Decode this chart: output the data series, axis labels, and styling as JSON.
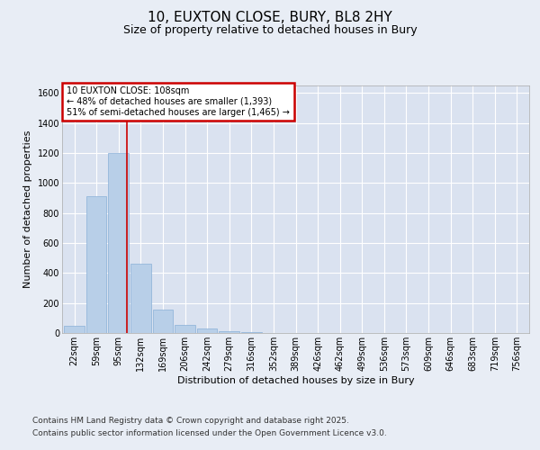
{
  "title_line1": "10, EUXTON CLOSE, BURY, BL8 2HY",
  "title_line2": "Size of property relative to detached houses in Bury",
  "xlabel": "Distribution of detached houses by size in Bury",
  "ylabel": "Number of detached properties",
  "bar_color": "#b8cfe8",
  "bar_edge_color": "#8ab0d8",
  "background_color": "#e8edf5",
  "plot_bg_color": "#dae2f0",
  "annotation_text": "10 EUXTON CLOSE: 108sqm\n← 48% of detached houses are smaller (1,393)\n51% of semi-detached houses are larger (1,465) →",
  "annotation_box_color": "#ffffff",
  "annotation_edge_color": "#cc0000",
  "vline_color": "#cc0000",
  "vline_x_index": 2,
  "categories": [
    "22sqm",
    "59sqm",
    "95sqm",
    "132sqm",
    "169sqm",
    "206sqm",
    "242sqm",
    "279sqm",
    "316sqm",
    "352sqm",
    "389sqm",
    "426sqm",
    "462sqm",
    "499sqm",
    "536sqm",
    "573sqm",
    "609sqm",
    "646sqm",
    "683sqm",
    "719sqm",
    "756sqm"
  ],
  "bar_heights": [
    50,
    910,
    1200,
    460,
    155,
    55,
    30,
    15,
    8,
    0,
    0,
    0,
    0,
    0,
    0,
    0,
    0,
    0,
    0,
    0,
    0
  ],
  "ylim": [
    0,
    1650
  ],
  "yticks": [
    0,
    200,
    400,
    600,
    800,
    1000,
    1200,
    1400,
    1600
  ],
  "footnote_line1": "Contains HM Land Registry data © Crown copyright and database right 2025.",
  "footnote_line2": "Contains public sector information licensed under the Open Government Licence v3.0.",
  "title_fontsize": 11,
  "subtitle_fontsize": 9,
  "label_fontsize": 8,
  "tick_fontsize": 7,
  "annotation_fontsize": 7,
  "footnote_fontsize": 6.5
}
